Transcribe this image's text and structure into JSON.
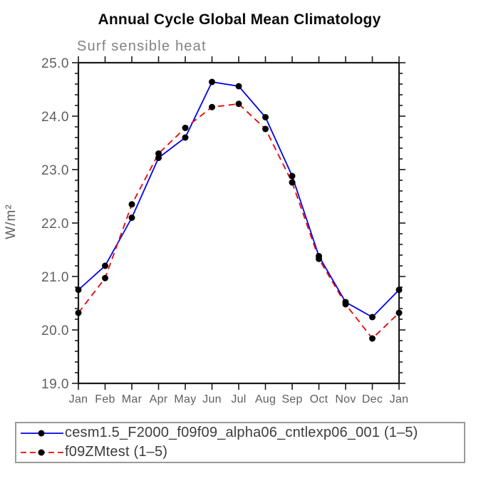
{
  "page": {
    "background": "#ffffff"
  },
  "chart_data": {
    "type": "line",
    "title": "Annual Cycle Global Mean Climatology",
    "subtitle": "Surf sensible heat",
    "ylabel": "W/m²",
    "xlabel": "",
    "categories": [
      "Jan",
      "Feb",
      "Mar",
      "Apr",
      "May",
      "Jun",
      "Jul",
      "Aug",
      "Sep",
      "Oct",
      "Nov",
      "Dec",
      "Jan"
    ],
    "ylim": [
      19.0,
      25.0
    ],
    "y_major_step": 1.0,
    "y_minor_step": 0.2,
    "ytick_labels": [
      "19.0",
      "20.0",
      "21.0",
      "22.0",
      "23.0",
      "24.0",
      "25.0"
    ],
    "grid": false,
    "legend_position": "bottom-box",
    "axis_color": "#1a1a1a",
    "marker": {
      "shape": "circle",
      "color": "#000000",
      "radius": 4.5
    },
    "series": [
      {
        "name": "cesm1.5_F2000_f09f09_alpha06_cntlexp06_001 (1–5)",
        "color": "#0000EE",
        "style": "solid",
        "values": [
          20.75,
          21.2,
          22.1,
          23.22,
          23.6,
          24.64,
          24.56,
          23.98,
          22.88,
          21.38,
          20.52,
          20.24,
          20.75
        ]
      },
      {
        "name": "f09ZMtest (1–5)",
        "color": "#EE0000",
        "style": "dashed",
        "values": [
          20.32,
          20.97,
          22.35,
          23.3,
          23.78,
          24.17,
          24.23,
          23.76,
          22.76,
          21.33,
          20.48,
          19.84,
          20.32
        ]
      }
    ]
  }
}
